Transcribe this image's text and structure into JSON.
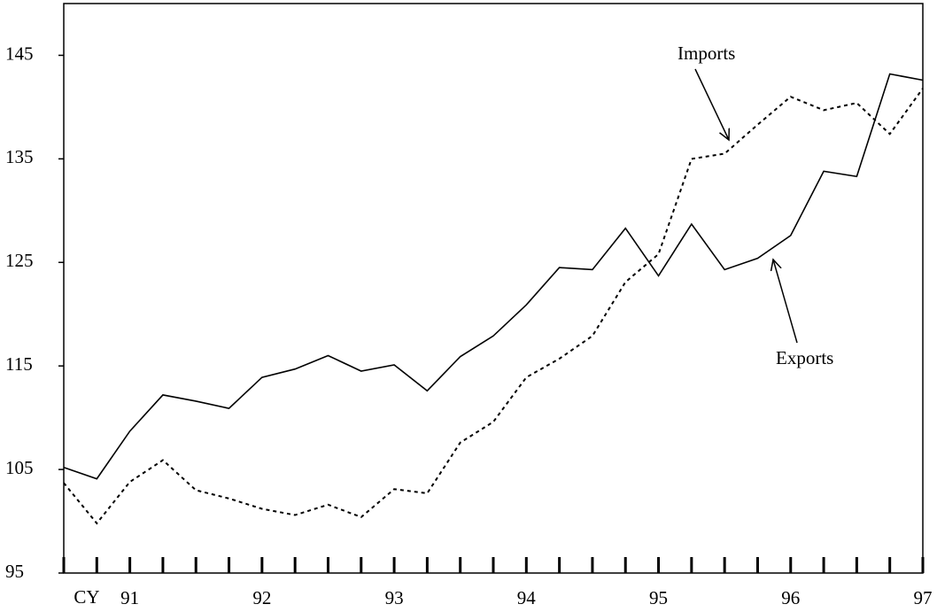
{
  "chart_data": {
    "type": "line",
    "x_axis_label": "CY",
    "categories": [
      null,
      null,
      "91",
      null,
      null,
      null,
      "92",
      null,
      null,
      null,
      "93",
      null,
      null,
      null,
      "94",
      null,
      null,
      null,
      "95",
      null,
      null,
      null,
      "96",
      null,
      null,
      null,
      "97"
    ],
    "series": [
      {
        "name": "Exports",
        "color": "#000000",
        "style": "solid",
        "values": [
          105.2,
          104.1,
          108.7,
          112.2,
          111.6,
          110.9,
          113.9,
          114.7,
          116.0,
          114.5,
          115.1,
          112.6,
          115.9,
          117.9,
          120.9,
          124.5,
          124.3,
          128.3,
          123.7,
          128.7,
          124.3,
          125.4,
          127.6,
          133.8,
          133.3,
          143.2,
          142.6
        ]
      },
      {
        "name": "Imports",
        "color": "#000000",
        "style": "dotted",
        "values": [
          103.7,
          99.8,
          103.8,
          105.9,
          103.0,
          102.2,
          101.2,
          100.6,
          101.6,
          100.4,
          103.1,
          102.7,
          107.6,
          109.6,
          113.9,
          115.7,
          117.9,
          123.1,
          125.8,
          135.0,
          135.5,
          138.3,
          141.0,
          139.7,
          140.4,
          137.4,
          141.8
        ]
      }
    ],
    "ylim": [
      95,
      150
    ],
    "yticks": [
      95,
      105,
      115,
      125,
      135,
      145
    ]
  }
}
